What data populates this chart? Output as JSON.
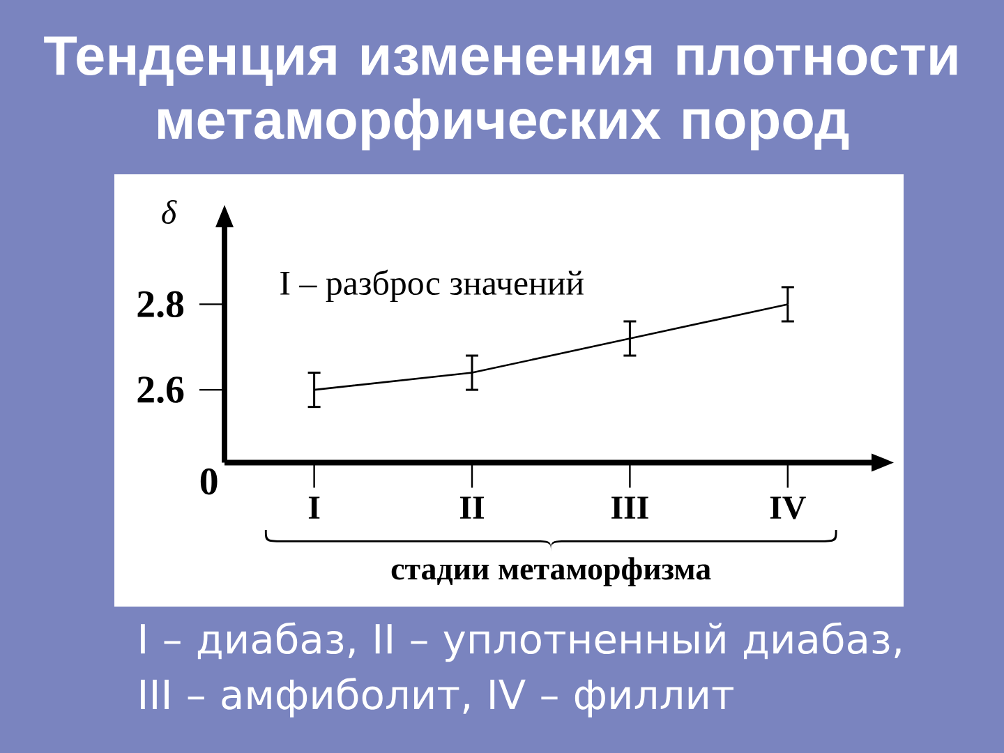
{
  "chart_data": {
    "type": "line",
    "title": "Тенденция изменения плотности метаморфических пород",
    "xlabel": "стадии метаморфизма",
    "ylabel": "δ",
    "categories": [
      "I",
      "II",
      "III",
      "IV"
    ],
    "series": [
      {
        "color": "#000000",
        "values": [
          2.6,
          2.64,
          2.72,
          2.8
        ],
        "errors": [
          0.04,
          0.04,
          0.04,
          0.04
        ]
      }
    ],
    "ylim": [
      2.43,
      2.98
    ],
    "yticks": [
      2.6,
      2.8
    ],
    "annotations": [
      "I – разброс значений",
      "0",
      "I – диабаз, II – уплотненный диабаз, III – амфиболит, IV – филлит"
    ]
  }
}
